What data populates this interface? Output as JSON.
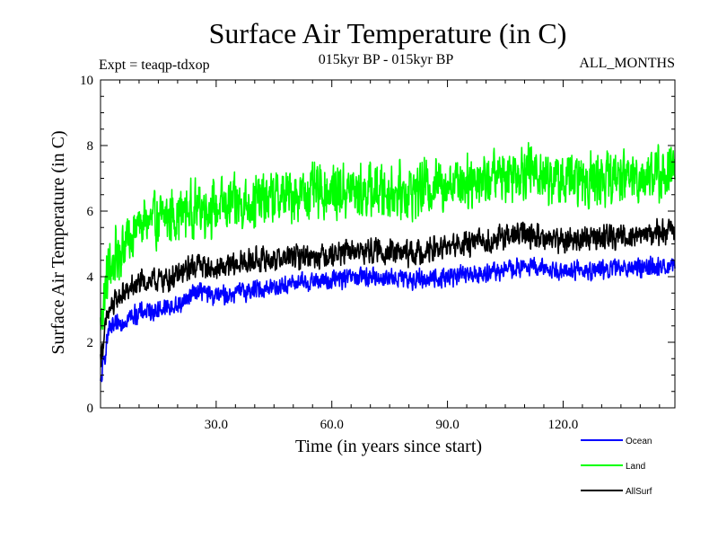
{
  "chart_data": {
    "type": "line",
    "title": "Surface Air Temperature (in C)",
    "subtitle_left": "Expt = teaqp-tdxop",
    "subtitle_center": "015kyr BP - 015kyr BP",
    "subtitle_right": "ALL_MONTHS",
    "xlabel": "Time (in years since start)",
    "ylabel": "Surface Air Temperature (in C)",
    "xlim": [
      0,
      149
    ],
    "ylim": [
      0,
      10
    ],
    "x_ticks": [
      30,
      60,
      90,
      120
    ],
    "x_tick_labels": [
      "30.0",
      "60.0",
      "90.0",
      "120.0"
    ],
    "y_ticks": [
      0,
      2,
      4,
      6,
      8,
      10
    ],
    "y_tick_labels": [
      "0",
      "2",
      "4",
      "6",
      "8",
      "10"
    ],
    "points_per_year": 12,
    "series": [
      {
        "name": "Ocean",
        "color": "#0000ff",
        "start": 0.7,
        "plateau": 4.4,
        "tau": 22,
        "trend": 0.0,
        "amplitude": 0.35,
        "anchors": [
          [
            0,
            0.7
          ],
          [
            2,
            2.3
          ],
          [
            5,
            2.6
          ],
          [
            10,
            2.9
          ],
          [
            15,
            3.0
          ],
          [
            20,
            3.1
          ],
          [
            25,
            3.6
          ],
          [
            30,
            3.4
          ],
          [
            40,
            3.6
          ],
          [
            50,
            3.8
          ],
          [
            60,
            3.9
          ],
          [
            70,
            4.0
          ],
          [
            80,
            3.9
          ],
          [
            90,
            4.0
          ],
          [
            100,
            4.1
          ],
          [
            110,
            4.3
          ],
          [
            120,
            4.2
          ],
          [
            130,
            4.2
          ],
          [
            140,
            4.3
          ],
          [
            149,
            4.3
          ]
        ]
      },
      {
        "name": "Land",
        "color": "#00ff00",
        "amplitude": 1.0,
        "anchors": [
          [
            0,
            2.5
          ],
          [
            2,
            4.2
          ],
          [
            5,
            4.8
          ],
          [
            10,
            5.6
          ],
          [
            15,
            5.7
          ],
          [
            20,
            5.9
          ],
          [
            25,
            6.1
          ],
          [
            30,
            6.1
          ],
          [
            40,
            6.3
          ],
          [
            50,
            6.5
          ],
          [
            60,
            6.6
          ],
          [
            70,
            6.6
          ],
          [
            80,
            6.6
          ],
          [
            90,
            6.9
          ],
          [
            100,
            7.0
          ],
          [
            110,
            7.3
          ],
          [
            120,
            6.9
          ],
          [
            130,
            7.0
          ],
          [
            140,
            7.1
          ],
          [
            149,
            7.2
          ]
        ]
      },
      {
        "name": "AllSurf",
        "color": "#000000",
        "amplitude": 0.45,
        "anchors": [
          [
            0,
            1.5
          ],
          [
            2,
            2.9
          ],
          [
            5,
            3.4
          ],
          [
            10,
            3.8
          ],
          [
            15,
            3.9
          ],
          [
            20,
            4.0
          ],
          [
            25,
            4.4
          ],
          [
            30,
            4.2
          ],
          [
            40,
            4.5
          ],
          [
            50,
            4.6
          ],
          [
            60,
            4.7
          ],
          [
            70,
            4.8
          ],
          [
            80,
            4.7
          ],
          [
            90,
            4.9
          ],
          [
            100,
            5.1
          ],
          [
            110,
            5.3
          ],
          [
            120,
            5.1
          ],
          [
            130,
            5.2
          ],
          [
            140,
            5.3
          ],
          [
            149,
            5.4
          ]
        ]
      }
    ],
    "legend": [
      {
        "label": "Ocean",
        "color": "#0000ff"
      },
      {
        "label": "Land",
        "color": "#00ff00"
      },
      {
        "label": "AllSurf",
        "color": "#000000"
      }
    ]
  }
}
